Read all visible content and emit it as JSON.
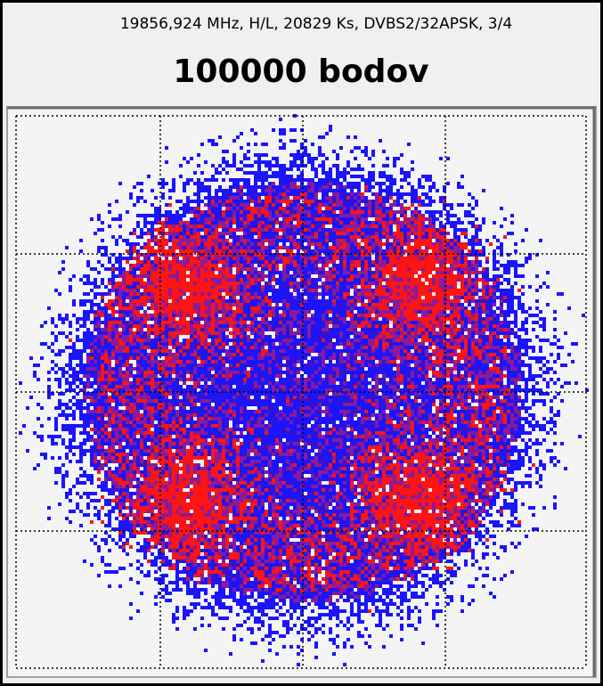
{
  "header": {
    "subtitle": "19856,924 MHz, H/L, 20829 Ks, DVBS2/32APSK, 3/4",
    "title": "100000 bodov"
  }
}
